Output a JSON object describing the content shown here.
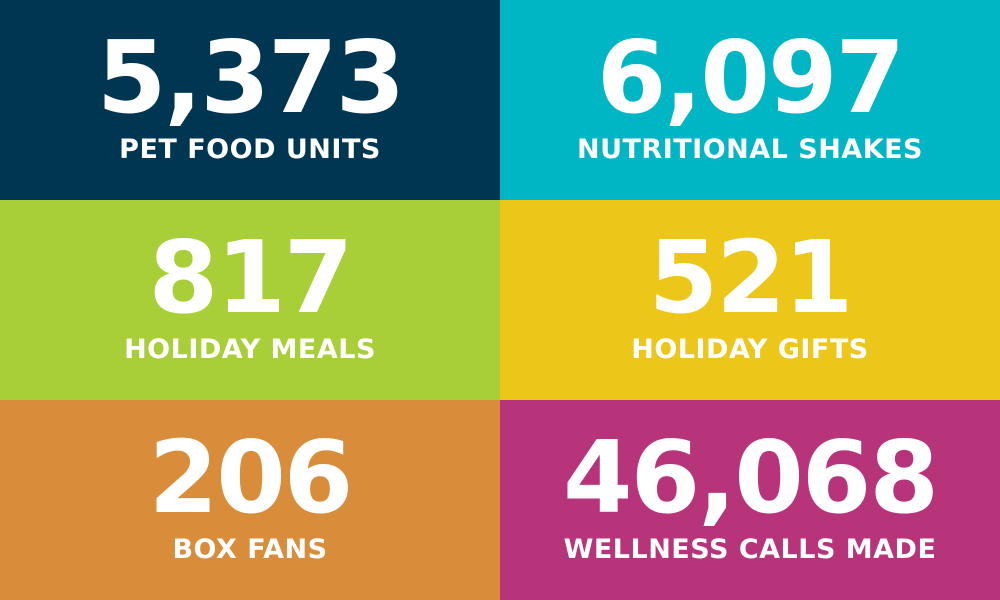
{
  "stats": [
    {
      "value": "5,373",
      "label": "PET FOOD UNITS",
      "color": "#003652"
    },
    {
      "value": "6,097",
      "label": "NUTRITIONAL SHAKES",
      "color": "#00B5C4"
    },
    {
      "value": "817",
      "label": "HOLIDAY MEALS",
      "color": "#A9CF38"
    },
    {
      "value": "521",
      "label": "HOLIDAY GIFTS",
      "color": "#ECC71A"
    },
    {
      "value": "206",
      "label": "BOX FANS",
      "color": "#D98D3A"
    },
    {
      "value": "46,068",
      "label": "WELLNESS CALLS MADE",
      "color": "#B8347A"
    }
  ]
}
